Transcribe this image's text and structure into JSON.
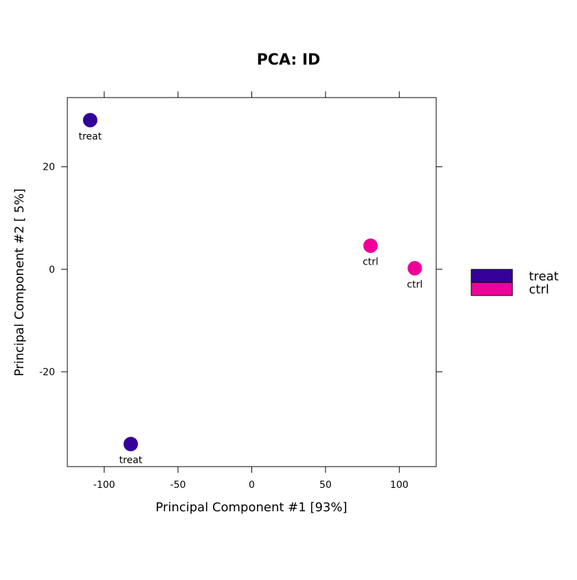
{
  "chart_data": {
    "type": "scatter",
    "title": "PCA: ID",
    "xlabel": "Principal Component #1 [93%]",
    "ylabel": "Principal Component #2 [ 5%]",
    "xlim": [
      -125,
      125
    ],
    "ylim": [
      -38.5,
      33.5
    ],
    "xticks": [
      -100,
      -50,
      0,
      50,
      100
    ],
    "xtick_labels": [
      "-100",
      "-50",
      "0",
      "50",
      "100"
    ],
    "yticks": [
      -20,
      0,
      20
    ],
    "ytick_labels": [
      "-20",
      "0",
      "20"
    ],
    "grid": false,
    "legend_position": "right",
    "series": [
      {
        "name": "treat",
        "color": "#330099",
        "points": [
          {
            "x": -109.5,
            "y": 29.1,
            "label": "treat"
          },
          {
            "x": -82,
            "y": -34.1,
            "label": "treat"
          }
        ]
      },
      {
        "name": "ctrl",
        "color": "#ee0099",
        "points": [
          {
            "x": 80.5,
            "y": 4.6,
            "label": "ctrl"
          },
          {
            "x": 110.5,
            "y": 0.2,
            "label": "ctrl"
          }
        ]
      }
    ]
  }
}
